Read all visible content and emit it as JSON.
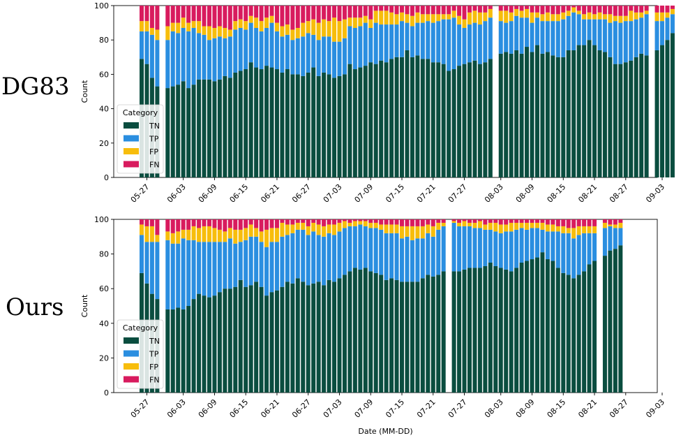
{
  "row_labels": [
    "DG83",
    "Ours"
  ],
  "colors": {
    "TN": "#0a4d3f",
    "TP": "#2a8ee0",
    "FP": "#f7bd0c",
    "FN": "#d81b5e"
  },
  "chart_data": [
    {
      "type": "bar",
      "stacked": true,
      "panel": "DG83",
      "xlabel": "",
      "ylabel": "Count",
      "ylim": [
        0,
        100
      ],
      "yticks": [
        0,
        20,
        40,
        60,
        80,
        100
      ],
      "xtick_labels": [
        "05-27",
        "06-03",
        "06-09",
        "06-15",
        "06-21",
        "06-27",
        "07-03",
        "07-09",
        "07-15",
        "07-21",
        "07-27",
        "08-03",
        "08-09",
        "08-15",
        "08-21",
        "08-27",
        "09-03"
      ],
      "legend": {
        "title": "Category",
        "entries": [
          "TN",
          "TP",
          "FP",
          "FN"
        ],
        "placement": "lower-left"
      },
      "series_names": [
        "TN",
        "TP",
        "FP",
        "FN"
      ],
      "start_date": "05-26",
      "bars": [
        [
          69,
          16,
          6,
          9
        ],
        [
          66,
          19,
          6,
          9
        ],
        [
          58,
          25,
          4,
          13
        ],
        [
          53,
          27,
          6,
          14
        ],
        null,
        [
          52,
          28,
          8,
          12
        ],
        [
          53,
          32,
          5,
          10
        ],
        [
          54,
          30,
          6,
          10
        ],
        [
          56,
          31,
          6,
          7
        ],
        [
          52,
          33,
          5,
          10
        ],
        [
          54,
          33,
          4,
          9
        ],
        [
          57,
          27,
          7,
          9
        ],
        [
          57,
          26,
          5,
          12
        ],
        [
          57,
          23,
          8,
          12
        ],
        [
          56,
          25,
          6,
          13
        ],
        [
          57,
          25,
          6,
          12
        ],
        [
          59,
          22,
          6,
          13
        ],
        [
          58,
          24,
          4,
          14
        ],
        [
          61,
          25,
          5,
          9
        ],
        [
          62,
          25,
          5,
          8
        ],
        [
          63,
          23,
          5,
          9
        ],
        [
          67,
          23,
          4,
          6
        ],
        [
          64,
          23,
          6,
          7
        ],
        [
          63,
          22,
          6,
          9
        ],
        [
          65,
          22,
          6,
          7
        ],
        [
          64,
          26,
          4,
          6
        ],
        [
          63,
          22,
          5,
          10
        ],
        [
          61,
          21,
          6,
          12
        ],
        [
          63,
          20,
          6,
          11
        ],
        [
          60,
          20,
          6,
          14
        ],
        [
          60,
          21,
          6,
          13
        ],
        [
          59,
          23,
          8,
          10
        ],
        [
          61,
          23,
          7,
          9
        ],
        [
          64,
          19,
          9,
          8
        ],
        [
          59,
          21,
          10,
          10
        ],
        [
          61,
          21,
          10,
          8
        ],
        [
          60,
          22,
          9,
          9
        ],
        [
          58,
          21,
          14,
          7
        ],
        [
          59,
          20,
          12,
          9
        ],
        [
          60,
          21,
          11,
          8
        ],
        [
          66,
          22,
          5,
          7
        ],
        [
          63,
          24,
          6,
          7
        ],
        [
          64,
          24,
          5,
          7
        ],
        [
          65,
          25,
          4,
          6
        ],
        [
          67,
          20,
          5,
          8
        ],
        [
          66,
          24,
          7,
          3
        ],
        [
          68,
          21,
          8,
          3
        ],
        [
          67,
          22,
          8,
          3
        ],
        [
          69,
          20,
          7,
          4
        ],
        [
          70,
          19,
          6,
          5
        ],
        [
          70,
          21,
          5,
          4
        ],
        [
          74,
          16,
          5,
          5
        ],
        [
          70,
          18,
          6,
          6
        ],
        [
          71,
          19,
          6,
          4
        ],
        [
          69,
          21,
          5,
          5
        ],
        [
          69,
          22,
          4,
          5
        ],
        [
          67,
          23,
          5,
          5
        ],
        [
          67,
          24,
          4,
          5
        ],
        [
          66,
          26,
          3,
          5
        ],
        [
          62,
          30,
          3,
          5
        ],
        [
          63,
          30,
          4,
          3
        ],
        [
          65,
          24,
          5,
          6
        ],
        [
          66,
          21,
          5,
          8
        ],
        [
          67,
          22,
          7,
          4
        ],
        [
          68,
          22,
          7,
          3
        ],
        [
          66,
          23,
          7,
          4
        ],
        [
          67,
          24,
          5,
          4
        ],
        [
          69,
          24,
          5,
          2
        ],
        null,
        [
          72,
          19,
          6,
          3
        ],
        [
          73,
          17,
          7,
          3
        ],
        [
          72,
          19,
          5,
          4
        ],
        [
          74,
          20,
          4,
          2
        ],
        [
          72,
          21,
          4,
          3
        ],
        [
          76,
          17,
          5,
          2
        ],
        [
          73,
          17,
          6,
          4
        ],
        [
          77,
          16,
          3,
          4
        ],
        [
          72,
          19,
          4,
          5
        ],
        [
          73,
          18,
          5,
          4
        ],
        [
          71,
          20,
          4,
          5
        ],
        [
          70,
          21,
          4,
          5
        ],
        [
          70,
          22,
          4,
          4
        ],
        [
          74,
          20,
          3,
          3
        ],
        [
          74,
          22,
          3,
          1
        ],
        [
          77,
          18,
          2,
          3
        ],
        [
          77,
          15,
          3,
          5
        ],
        [
          80,
          12,
          4,
          4
        ],
        [
          77,
          15,
          3,
          5
        ],
        [
          74,
          18,
          4,
          4
        ],
        [
          73,
          19,
          3,
          5
        ],
        [
          70,
          20,
          5,
          5
        ],
        [
          66,
          25,
          3,
          6
        ],
        [
          66,
          24,
          4,
          6
        ],
        [
          67,
          24,
          3,
          6
        ],
        [
          68,
          23,
          6,
          3
        ],
        [
          70,
          22,
          4,
          4
        ],
        [
          72,
          21,
          3,
          4
        ],
        [
          71,
          24,
          2,
          3
        ],
        null,
        [
          74,
          17,
          5,
          4
        ],
        [
          77,
          14,
          5,
          4
        ],
        [
          80,
          13,
          3,
          4
        ],
        [
          84,
          11,
          3,
          2
        ]
      ]
    },
    {
      "type": "bar",
      "stacked": true,
      "panel": "Ours",
      "xlabel": "Date (MM-DD)",
      "ylabel": "Count",
      "ylim": [
        0,
        100
      ],
      "yticks": [
        0,
        20,
        40,
        60,
        80,
        100
      ],
      "xtick_labels": [
        "05-27",
        "06-03",
        "06-09",
        "06-15",
        "06-21",
        "06-27",
        "07-03",
        "07-09",
        "07-15",
        "07-21",
        "07-27",
        "08-03",
        "08-09",
        "08-15",
        "08-21",
        "08-27",
        "09-03"
      ],
      "legend": {
        "title": "Category",
        "entries": [
          "TN",
          "TP",
          "FP",
          "FN"
        ],
        "placement": "lower-left"
      },
      "series_names": [
        "TN",
        "TP",
        "FP",
        "FN"
      ],
      "start_date": "05-26",
      "bars": [
        [
          69,
          22,
          6,
          3
        ],
        [
          63,
          24,
          9,
          4
        ],
        [
          57,
          30,
          9,
          4
        ],
        [
          54,
          33,
          4,
          9
        ],
        null,
        [
          48,
          40,
          5,
          7
        ],
        [
          48,
          38,
          6,
          8
        ],
        [
          49,
          37,
          7,
          7
        ],
        [
          48,
          41,
          5,
          6
        ],
        [
          50,
          38,
          6,
          6
        ],
        [
          54,
          34,
          8,
          4
        ],
        [
          57,
          30,
          8,
          5
        ],
        [
          56,
          31,
          9,
          4
        ],
        [
          55,
          32,
          9,
          4
        ],
        [
          56,
          31,
          8,
          5
        ],
        [
          58,
          29,
          7,
          6
        ],
        [
          60,
          27,
          6,
          7
        ],
        [
          60,
          29,
          6,
          5
        ],
        [
          61,
          25,
          8,
          6
        ],
        [
          65,
          22,
          7,
          6
        ],
        [
          61,
          27,
          7,
          5
        ],
        [
          62,
          28,
          7,
          3
        ],
        [
          64,
          26,
          5,
          5
        ],
        [
          61,
          26,
          6,
          7
        ],
        [
          56,
          28,
          10,
          6
        ],
        [
          58,
          29,
          8,
          5
        ],
        [
          59,
          28,
          8,
          5
        ],
        [
          61,
          29,
          8,
          2
        ],
        [
          64,
          27,
          6,
          3
        ],
        [
          63,
          29,
          5,
          3
        ],
        [
          66,
          28,
          4,
          2
        ],
        [
          64,
          30,
          4,
          2
        ],
        [
          62,
          29,
          5,
          4
        ],
        [
          63,
          30,
          5,
          2
        ],
        [
          64,
          27,
          6,
          3
        ],
        [
          62,
          28,
          6,
          4
        ],
        [
          65,
          27,
          5,
          3
        ],
        [
          64,
          27,
          6,
          3
        ],
        [
          66,
          27,
          5,
          2
        ],
        [
          68,
          27,
          4,
          1
        ],
        [
          70,
          26,
          2,
          2
        ],
        [
          72,
          24,
          3,
          1
        ],
        [
          71,
          26,
          2,
          1
        ],
        [
          72,
          24,
          3,
          1
        ],
        [
          70,
          25,
          3,
          2
        ],
        [
          69,
          26,
          3,
          2
        ],
        [
          68,
          26,
          3,
          3
        ],
        [
          65,
          27,
          5,
          3
        ],
        [
          66,
          26,
          5,
          3
        ],
        [
          65,
          27,
          5,
          3
        ],
        [
          64,
          25,
          7,
          4
        ],
        [
          64,
          26,
          6,
          4
        ],
        [
          64,
          24,
          8,
          4
        ],
        [
          64,
          25,
          7,
          4
        ],
        [
          66,
          23,
          7,
          4
        ],
        [
          68,
          24,
          5,
          3
        ],
        [
          67,
          23,
          6,
          4
        ],
        [
          68,
          26,
          4,
          2
        ],
        [
          70,
          26,
          2,
          2
        ],
        null,
        [
          70,
          28,
          1,
          1
        ],
        [
          70,
          26,
          2,
          2
        ],
        [
          71,
          25,
          3,
          1
        ],
        [
          72,
          24,
          2,
          2
        ],
        [
          72,
          23,
          3,
          2
        ],
        [
          72,
          23,
          4,
          1
        ],
        [
          73,
          21,
          3,
          3
        ],
        [
          75,
          19,
          4,
          2
        ],
        [
          73,
          20,
          5,
          2
        ],
        [
          72,
          20,
          5,
          3
        ],
        [
          71,
          22,
          4,
          3
        ],
        [
          70,
          23,
          5,
          2
        ],
        [
          72,
          22,
          4,
          2
        ],
        [
          75,
          20,
          3,
          2
        ],
        [
          76,
          18,
          4,
          2
        ],
        [
          77,
          18,
          3,
          2
        ],
        [
          78,
          17,
          3,
          2
        ],
        [
          81,
          13,
          4,
          2
        ],
        [
          77,
          16,
          4,
          3
        ],
        [
          76,
          17,
          4,
          3
        ],
        [
          72,
          21,
          3,
          4
        ],
        [
          69,
          23,
          4,
          4
        ],
        [
          68,
          24,
          3,
          5
        ],
        [
          66,
          23,
          6,
          5
        ],
        [
          68,
          23,
          5,
          4
        ],
        [
          70,
          22,
          4,
          4
        ],
        [
          74,
          18,
          4,
          4
        ],
        [
          76,
          16,
          4,
          4
        ],
        null,
        [
          79,
          16,
          3,
          2
        ],
        [
          82,
          14,
          1,
          3
        ],
        [
          83,
          12,
          2,
          3
        ],
        [
          85,
          10,
          3,
          2
        ]
      ]
    }
  ]
}
